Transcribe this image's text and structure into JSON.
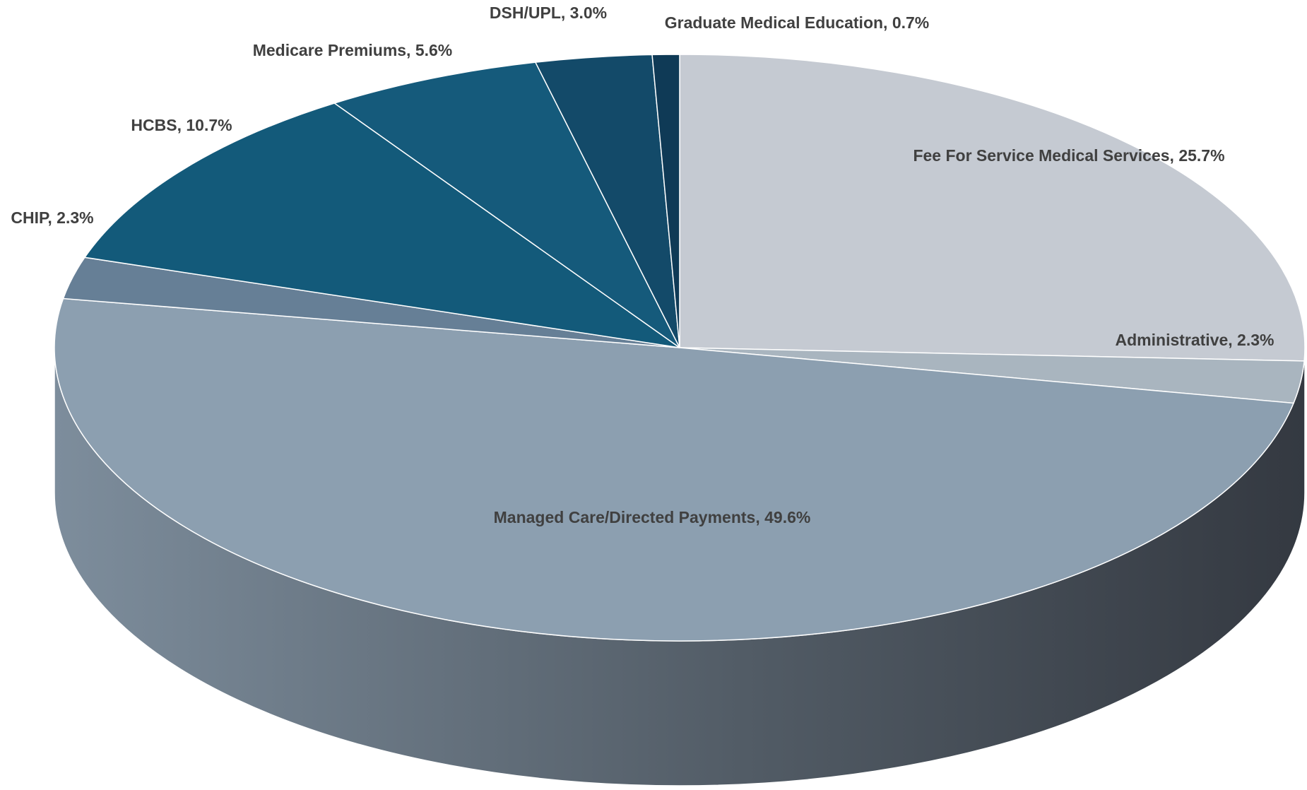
{
  "chart_data": {
    "type": "pie",
    "values": [
      25.7,
      2.3,
      49.6,
      2.3,
      10.7,
      5.6,
      3.0,
      0.7
    ],
    "value_labels": [
      "Fee For Service Medical Services, 25.7%",
      "Administrative, 2.3%",
      "Managed Care/Directed Payments, 49.6%",
      "CHIP, 2.3%",
      "HCBS, 10.7%",
      "Medicare Premiums, 5.6%",
      "DSH/UPL, 3.0%",
      "Graduate Medical Education, 0.7%"
    ],
    "colors": [
      "#c5cad2",
      "#a9b5bf",
      "#8c9fb0",
      "#667f96",
      "#135a7a",
      "#155a7b",
      "#134a69",
      "#0f3a56"
    ]
  }
}
